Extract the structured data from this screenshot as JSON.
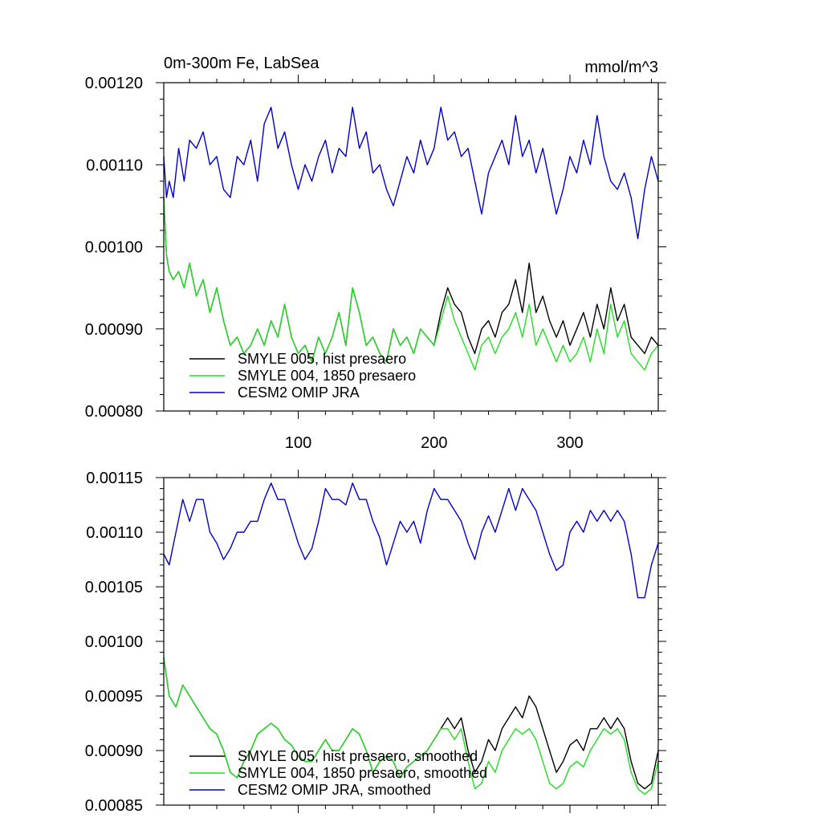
{
  "chart_data": [
    {
      "type": "line",
      "title": "0m-300m Fe, LabSea",
      "units": "mmol/m^3",
      "xlim": [
        1,
        365
      ],
      "ylim": [
        0.0008,
        0.0012
      ],
      "xticks": [
        100,
        200,
        300
      ],
      "yticks": [
        0.0008,
        0.0009,
        0.001,
        0.0011,
        0.0012
      ],
      "ytick_labels": [
        "0.00080",
        "0.00090",
        "0.00100",
        "0.00110",
        "0.00120"
      ],
      "legend_position": "bottom-left",
      "series": [
        {
          "name": "SMYLE 005, hist presaero",
          "color": "#000000",
          "x": [
            1,
            3,
            5,
            8,
            12,
            16,
            20,
            25,
            30,
            35,
            40,
            45,
            50,
            55,
            60,
            65,
            70,
            75,
            80,
            85,
            90,
            95,
            100,
            105,
            110,
            115,
            120,
            125,
            130,
            135,
            140,
            145,
            150,
            155,
            160,
            165,
            170,
            175,
            180,
            185,
            190,
            195,
            200,
            205,
            210,
            215,
            220,
            225,
            230,
            235,
            240,
            245,
            250,
            255,
            260,
            265,
            270,
            275,
            280,
            285,
            290,
            295,
            300,
            305,
            310,
            315,
            320,
            325,
            330,
            335,
            340,
            345,
            350,
            355,
            360,
            365
          ],
          "y": [
            0.00106,
            0.00099,
            0.00097,
            0.00096,
            0.00097,
            0.00095,
            0.00098,
            0.00094,
            0.00096,
            0.00092,
            0.00095,
            0.00091,
            0.00088,
            0.00089,
            0.00087,
            0.00088,
            0.0009,
            0.00088,
            0.00091,
            0.00089,
            0.00093,
            0.00089,
            0.00087,
            0.00088,
            0.00086,
            0.00089,
            0.00087,
            0.00089,
            0.00092,
            0.00088,
            0.00095,
            0.00092,
            0.00088,
            0.00089,
            0.00087,
            0.00086,
            0.0009,
            0.00088,
            0.00089,
            0.00087,
            0.0009,
            0.00089,
            0.00088,
            0.00092,
            0.00095,
            0.00093,
            0.00092,
            0.00089,
            0.00087,
            0.0009,
            0.00091,
            0.00089,
            0.00092,
            0.00093,
            0.00096,
            0.00092,
            0.00098,
            0.00092,
            0.00094,
            0.00091,
            0.00089,
            0.00091,
            0.00088,
            0.0009,
            0.00092,
            0.00089,
            0.00093,
            0.0009,
            0.00095,
            0.00091,
            0.00093,
            0.00089,
            0.00088,
            0.00087,
            0.00089,
            0.00088
          ]
        },
        {
          "name": "SMYLE 004, 1850 presaero",
          "color": "#22dd22",
          "x": [
            1,
            3,
            5,
            8,
            12,
            16,
            20,
            25,
            30,
            35,
            40,
            45,
            50,
            55,
            60,
            65,
            70,
            75,
            80,
            85,
            90,
            95,
            100,
            105,
            110,
            115,
            120,
            125,
            130,
            135,
            140,
            145,
            150,
            155,
            160,
            165,
            170,
            175,
            180,
            185,
            190,
            195,
            200,
            205,
            210,
            215,
            220,
            225,
            230,
            235,
            240,
            245,
            250,
            255,
            260,
            265,
            270,
            275,
            280,
            285,
            290,
            295,
            300,
            305,
            310,
            315,
            320,
            325,
            330,
            335,
            340,
            345,
            350,
            355,
            360,
            365
          ],
          "y": [
            0.00106,
            0.00099,
            0.00097,
            0.00096,
            0.00097,
            0.00095,
            0.00098,
            0.00094,
            0.00096,
            0.00092,
            0.00095,
            0.00091,
            0.00088,
            0.00089,
            0.00087,
            0.00088,
            0.0009,
            0.00088,
            0.00091,
            0.00089,
            0.00093,
            0.00089,
            0.00087,
            0.00088,
            0.00086,
            0.00089,
            0.00087,
            0.00089,
            0.00092,
            0.00088,
            0.00095,
            0.00092,
            0.00088,
            0.00089,
            0.00087,
            0.00086,
            0.0009,
            0.00088,
            0.00089,
            0.00087,
            0.0009,
            0.00089,
            0.00088,
            0.00091,
            0.00094,
            0.00091,
            0.00089,
            0.00087,
            0.00085,
            0.00088,
            0.00089,
            0.00087,
            0.00089,
            0.0009,
            0.00092,
            0.00089,
            0.00093,
            0.00088,
            0.0009,
            0.00088,
            0.00086,
            0.00088,
            0.00086,
            0.00087,
            0.00089,
            0.00086,
            0.0009,
            0.00087,
            0.00093,
            0.00089,
            0.00091,
            0.00087,
            0.00086,
            0.00085,
            0.00087,
            0.00088
          ]
        },
        {
          "name": "CESM2 OMIP JRA",
          "color": "#0000cc",
          "x": [
            1,
            3,
            5,
            8,
            12,
            16,
            20,
            25,
            30,
            35,
            40,
            45,
            50,
            55,
            60,
            65,
            70,
            75,
            80,
            85,
            90,
            95,
            100,
            105,
            110,
            115,
            120,
            125,
            130,
            135,
            140,
            145,
            150,
            155,
            160,
            165,
            170,
            175,
            180,
            185,
            190,
            195,
            200,
            205,
            210,
            215,
            220,
            225,
            230,
            235,
            240,
            245,
            250,
            255,
            260,
            265,
            270,
            275,
            280,
            285,
            290,
            295,
            300,
            305,
            310,
            315,
            320,
            325,
            330,
            335,
            340,
            345,
            350,
            355,
            360,
            365
          ],
          "y": [
            0.00111,
            0.00106,
            0.00108,
            0.00106,
            0.00112,
            0.00108,
            0.00113,
            0.00112,
            0.00114,
            0.0011,
            0.00111,
            0.00107,
            0.00106,
            0.00111,
            0.0011,
            0.00113,
            0.00108,
            0.00115,
            0.00117,
            0.00112,
            0.00114,
            0.0011,
            0.00107,
            0.0011,
            0.00108,
            0.00111,
            0.00113,
            0.00109,
            0.00112,
            0.00111,
            0.00117,
            0.00112,
            0.00114,
            0.00109,
            0.0011,
            0.00107,
            0.00105,
            0.00108,
            0.00111,
            0.00109,
            0.00113,
            0.0011,
            0.00112,
            0.00117,
            0.00113,
            0.00114,
            0.00111,
            0.00112,
            0.00108,
            0.00104,
            0.00109,
            0.00111,
            0.00113,
            0.0011,
            0.00116,
            0.00111,
            0.00113,
            0.00109,
            0.00112,
            0.00108,
            0.00104,
            0.00107,
            0.00111,
            0.00109,
            0.00113,
            0.0011,
            0.00116,
            0.00111,
            0.00108,
            0.00107,
            0.00109,
            0.00106,
            0.00101,
            0.00107,
            0.00111,
            0.00108
          ]
        }
      ]
    },
    {
      "type": "line",
      "xlim": [
        1,
        365
      ],
      "ylim": [
        0.00085,
        0.00115
      ],
      "xticks": [
        100,
        200,
        300
      ],
      "yticks": [
        0.00085,
        0.0009,
        0.00095,
        0.001,
        0.00105,
        0.0011,
        0.00115
      ],
      "ytick_labels": [
        "0.00085",
        "0.00090",
        "0.00095",
        "0.00100",
        "0.00105",
        "0.00110",
        "0.00115"
      ],
      "legend_position": "bottom-left",
      "series": [
        {
          "name": "SMYLE 005, hist presaero, smoothed",
          "color": "#000000",
          "x": [
            1,
            5,
            10,
            15,
            20,
            25,
            30,
            35,
            40,
            45,
            50,
            55,
            60,
            65,
            70,
            75,
            80,
            85,
            90,
            95,
            100,
            105,
            110,
            115,
            120,
            125,
            130,
            135,
            140,
            145,
            150,
            155,
            160,
            165,
            170,
            175,
            180,
            185,
            190,
            195,
            200,
            205,
            210,
            215,
            220,
            225,
            230,
            235,
            240,
            245,
            250,
            255,
            260,
            265,
            270,
            275,
            280,
            285,
            290,
            295,
            300,
            305,
            310,
            315,
            320,
            325,
            330,
            335,
            340,
            345,
            350,
            355,
            360,
            365
          ],
          "y": [
            0.000985,
            0.00095,
            0.00094,
            0.00096,
            0.00095,
            0.00094,
            0.00093,
            0.00092,
            0.000915,
            0.0009,
            0.00088,
            0.000875,
            0.00089,
            0.0009,
            0.000915,
            0.00092,
            0.000925,
            0.00092,
            0.00091,
            0.000905,
            0.000895,
            0.00089,
            0.00089,
            0.0009,
            0.00091,
            0.0009,
            0.0009,
            0.00091,
            0.00092,
            0.000915,
            0.0009,
            0.00088,
            0.00089,
            0.000895,
            0.00089,
            0.000875,
            0.000885,
            0.00089,
            0.000895,
            0.0009,
            0.00091,
            0.00092,
            0.00093,
            0.00092,
            0.00093,
            0.0009,
            0.00088,
            0.00089,
            0.00091,
            0.0009,
            0.00092,
            0.00093,
            0.00094,
            0.00093,
            0.00095,
            0.00094,
            0.00092,
            0.0009,
            0.00088,
            0.00089,
            0.000905,
            0.00091,
            0.0009,
            0.00092,
            0.00092,
            0.00093,
            0.00092,
            0.00093,
            0.00092,
            0.00089,
            0.00087,
            0.000865,
            0.00087,
            0.0009
          ]
        },
        {
          "name": "SMYLE 004, 1850 presaero, smoothed",
          "color": "#22dd22",
          "x": [
            1,
            5,
            10,
            15,
            20,
            25,
            30,
            35,
            40,
            45,
            50,
            55,
            60,
            65,
            70,
            75,
            80,
            85,
            90,
            95,
            100,
            105,
            110,
            115,
            120,
            125,
            130,
            135,
            140,
            145,
            150,
            155,
            160,
            165,
            170,
            175,
            180,
            185,
            190,
            195,
            200,
            205,
            210,
            215,
            220,
            225,
            230,
            235,
            240,
            245,
            250,
            255,
            260,
            265,
            270,
            275,
            280,
            285,
            290,
            295,
            300,
            305,
            310,
            315,
            320,
            325,
            330,
            335,
            340,
            345,
            350,
            355,
            360,
            365
          ],
          "y": [
            0.000985,
            0.00095,
            0.00094,
            0.00096,
            0.00095,
            0.00094,
            0.00093,
            0.00092,
            0.000915,
            0.0009,
            0.00088,
            0.000875,
            0.00089,
            0.0009,
            0.000915,
            0.00092,
            0.000925,
            0.00092,
            0.00091,
            0.000905,
            0.000895,
            0.00089,
            0.00089,
            0.0009,
            0.00091,
            0.0009,
            0.0009,
            0.00091,
            0.00092,
            0.000915,
            0.0009,
            0.00088,
            0.00089,
            0.000895,
            0.00089,
            0.000875,
            0.000885,
            0.00089,
            0.000895,
            0.0009,
            0.00091,
            0.00092,
            0.00092,
            0.00091,
            0.00092,
            0.00089,
            0.000865,
            0.00087,
            0.00089,
            0.00088,
            0.0009,
            0.00091,
            0.00092,
            0.000915,
            0.00092,
            0.00091,
            0.00089,
            0.00087,
            0.000865,
            0.00087,
            0.000885,
            0.00089,
            0.000885,
            0.0009,
            0.00091,
            0.00092,
            0.000915,
            0.00092,
            0.00091,
            0.00088,
            0.000865,
            0.00086,
            0.000865,
            0.00089
          ]
        },
        {
          "name": "CESM2 OMIP JRA, smoothed",
          "color": "#0000cc",
          "x": [
            1,
            5,
            10,
            15,
            20,
            25,
            30,
            35,
            40,
            45,
            50,
            55,
            60,
            65,
            70,
            75,
            80,
            85,
            90,
            95,
            100,
            105,
            110,
            115,
            120,
            125,
            130,
            135,
            140,
            145,
            150,
            155,
            160,
            165,
            170,
            175,
            180,
            185,
            190,
            195,
            200,
            205,
            210,
            215,
            220,
            225,
            230,
            235,
            240,
            245,
            250,
            255,
            260,
            265,
            270,
            275,
            280,
            285,
            290,
            295,
            300,
            305,
            310,
            315,
            320,
            325,
            330,
            335,
            340,
            345,
            350,
            355,
            360,
            365
          ],
          "y": [
            0.00108,
            0.00107,
            0.0011,
            0.00113,
            0.00111,
            0.00113,
            0.00113,
            0.0011,
            0.00109,
            0.001075,
            0.001085,
            0.0011,
            0.0011,
            0.00111,
            0.00111,
            0.00113,
            0.001145,
            0.00113,
            0.00113,
            0.00111,
            0.00109,
            0.001075,
            0.001085,
            0.00111,
            0.00114,
            0.00113,
            0.00113,
            0.001125,
            0.001145,
            0.00113,
            0.00113,
            0.00111,
            0.001095,
            0.00107,
            0.00109,
            0.00111,
            0.0011,
            0.00111,
            0.00109,
            0.00112,
            0.00114,
            0.00113,
            0.00113,
            0.00112,
            0.00111,
            0.00109,
            0.001075,
            0.0011,
            0.001115,
            0.0011,
            0.00112,
            0.00114,
            0.00112,
            0.00114,
            0.00113,
            0.00112,
            0.0011,
            0.00108,
            0.001065,
            0.00107,
            0.0011,
            0.00111,
            0.0011,
            0.00112,
            0.00111,
            0.00112,
            0.00111,
            0.00112,
            0.00111,
            0.00108,
            0.00104,
            0.00104,
            0.00107,
            0.00109
          ]
        }
      ]
    }
  ]
}
